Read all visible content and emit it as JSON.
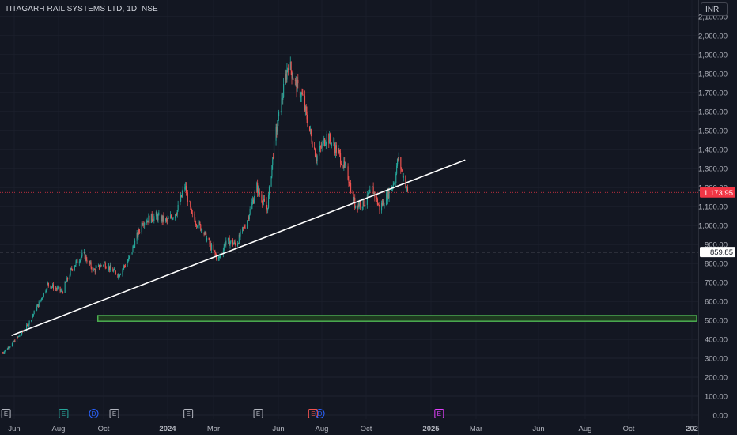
{
  "header": {
    "title": "TITAGARH RAIL SYSTEMS LTD, 1D, NSE",
    "currency": "INR"
  },
  "colors": {
    "background": "#131722",
    "up": "#26a69a",
    "down": "#ef5350",
    "trendline": "#ffffff",
    "zone_border": "#4caf50",
    "zone_fill": "#1e3a1f",
    "current_price_tag": "#f23645",
    "level_tag_bg": "#ffffff"
  },
  "chart_data": {
    "type": "candlestick",
    "symbol": "TITAGARH RAIL SYSTEMS LTD",
    "interval": "1D",
    "exchange": "NSE",
    "x_ticks": [
      "Jun",
      "Aug",
      "Oct",
      "2024",
      "Mar",
      "Jun",
      "Aug",
      "Oct",
      "2025",
      "Mar",
      "Jun",
      "Aug",
      "Oct",
      "202"
    ],
    "y_ticks": [
      "0.00",
      "100.00",
      "200.00",
      "300.00",
      "400.00",
      "500.00",
      "600.00",
      "700.00",
      "800.00",
      "900.00",
      "1,000.00",
      "1,100.00",
      "1,200.00",
      "1,300.00",
      "1,400.00",
      "1,500.00",
      "1,600.00",
      "1,700.00",
      "1,800.00",
      "1,900.00",
      "2,000.00",
      "2,100.00"
    ],
    "ylim": [
      0,
      2100
    ],
    "price_trend": [
      {
        "date": "2023-05-15",
        "price": 330
      },
      {
        "date": "2023-05-30",
        "price": 380
      },
      {
        "date": "2023-06-20",
        "price": 470
      },
      {
        "date": "2023-07-10",
        "price": 610
      },
      {
        "date": "2023-07-20",
        "price": 690
      },
      {
        "date": "2023-08-10",
        "price": 650
      },
      {
        "date": "2023-08-25",
        "price": 780
      },
      {
        "date": "2023-09-10",
        "price": 850
      },
      {
        "date": "2023-09-25",
        "price": 760
      },
      {
        "date": "2023-10-10",
        "price": 800
      },
      {
        "date": "2023-10-31",
        "price": 740
      },
      {
        "date": "2023-11-15",
        "price": 820
      },
      {
        "date": "2023-11-25",
        "price": 920
      },
      {
        "date": "2023-12-05",
        "price": 1020
      },
      {
        "date": "2023-12-25",
        "price": 1050
      },
      {
        "date": "2024-01-10",
        "price": 1020
      },
      {
        "date": "2024-01-25",
        "price": 1080
      },
      {
        "date": "2024-02-05",
        "price": 1210
      },
      {
        "date": "2024-02-15",
        "price": 1050
      },
      {
        "date": "2024-03-01",
        "price": 980
      },
      {
        "date": "2024-03-15",
        "price": 880
      },
      {
        "date": "2024-03-25",
        "price": 820
      },
      {
        "date": "2024-04-05",
        "price": 920
      },
      {
        "date": "2024-04-20",
        "price": 900
      },
      {
        "date": "2024-05-05",
        "price": 1020
      },
      {
        "date": "2024-05-20",
        "price": 1200
      },
      {
        "date": "2024-06-04",
        "price": 1080
      },
      {
        "date": "2024-06-15",
        "price": 1450
      },
      {
        "date": "2024-06-25",
        "price": 1650
      },
      {
        "date": "2024-07-05",
        "price": 1860
      },
      {
        "date": "2024-07-15",
        "price": 1750
      },
      {
        "date": "2024-07-25",
        "price": 1680
      },
      {
        "date": "2024-08-05",
        "price": 1500
      },
      {
        "date": "2024-08-15",
        "price": 1360
      },
      {
        "date": "2024-08-30",
        "price": 1470
      },
      {
        "date": "2024-09-15",
        "price": 1390
      },
      {
        "date": "2024-09-30",
        "price": 1260
      },
      {
        "date": "2024-10-10",
        "price": 1110
      },
      {
        "date": "2024-10-25",
        "price": 1120
      },
      {
        "date": "2024-11-05",
        "price": 1190
      },
      {
        "date": "2024-11-15",
        "price": 1090
      },
      {
        "date": "2024-11-25",
        "price": 1150
      },
      {
        "date": "2024-12-05",
        "price": 1220
      },
      {
        "date": "2024-12-12",
        "price": 1350
      },
      {
        "date": "2024-12-20",
        "price": 1260
      },
      {
        "date": "2024-12-26",
        "price": 1173.95
      }
    ],
    "current_price": "1,173.95",
    "horizontal_level": {
      "price": 859.85,
      "label": "859.85"
    },
    "trendline": {
      "start": {
        "date": "2023-05-28",
        "price": 420
      },
      "end": {
        "date": "2025-03-20",
        "price": 1345
      }
    },
    "support_zone": {
      "start_date": "2023-10-01",
      "price_low": 495,
      "price_high": 525
    },
    "event_markers": [
      {
        "letter": "E",
        "date": "2023-05-20",
        "kind": "earnings"
      },
      {
        "letter": "E",
        "date": "2023-08-12",
        "kind": "earnings-future"
      },
      {
        "letter": "D",
        "date": "2023-09-25",
        "kind": "dividend"
      },
      {
        "letter": "E",
        "date": "2023-10-25",
        "kind": "earnings"
      },
      {
        "letter": "E",
        "date": "2024-02-10",
        "kind": "earnings"
      },
      {
        "letter": "E",
        "date": "2024-05-22",
        "kind": "earnings"
      },
      {
        "letter": "E",
        "date": "2024-08-10",
        "kind": "earnings-red"
      },
      {
        "letter": "D",
        "date": "2024-08-20",
        "kind": "dividend"
      },
      {
        "letter": "E",
        "date": "2025-02-10",
        "kind": "earnings-future"
      }
    ]
  }
}
